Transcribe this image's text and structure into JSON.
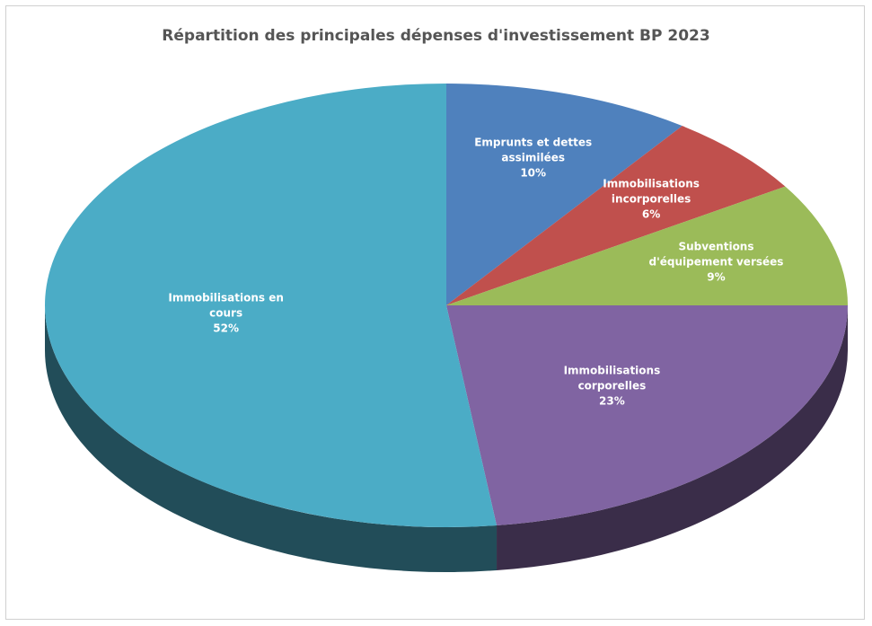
{
  "chart_data": {
    "type": "pie3d",
    "title": "Répartition des principales dépenses d'investissement BP 2023",
    "categories": [
      "Emprunts et dettes assimilées",
      "Immobilisations incorporelles",
      "Subventions d'équipement versées",
      "Immobilisations corporelles",
      "Immobilisations en cours"
    ],
    "values": [
      10,
      6,
      9,
      23,
      52
    ],
    "value_labels": [
      "10%",
      "6%",
      "9%",
      "23%",
      "52%"
    ],
    "colors": [
      "#4f81bd",
      "#c0504d",
      "#9bbb59",
      "#8064a2",
      "#4bacc6"
    ]
  }
}
